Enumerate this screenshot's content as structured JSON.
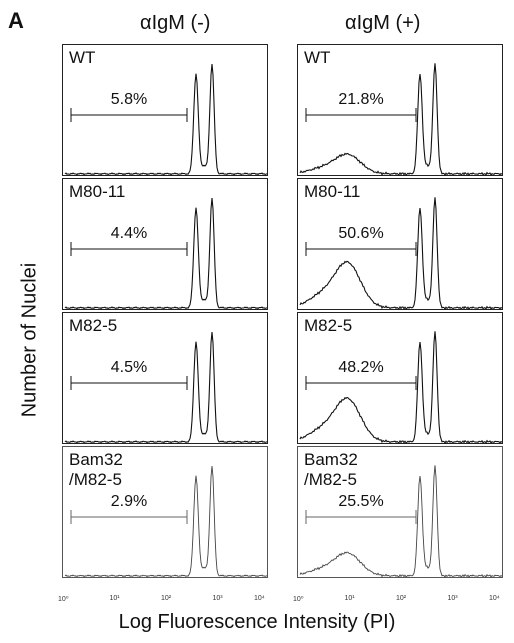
{
  "figure": {
    "panel_letter": "A",
    "col_titles": [
      "αIgM (-)",
      "αIgM (+)"
    ],
    "ylabel": "Number of Nuclei",
    "xlabel": "Log Fluorescence Intensity (PI)",
    "x_ticks": [
      "10⁰",
      "10¹",
      "10²",
      "10³",
      "10⁴"
    ]
  },
  "colors": {
    "ink": "#111111",
    "faint": "#777777"
  },
  "chart_data": [
    {
      "type": "histogram",
      "sample": "WT",
      "condition": "αIgM (-)",
      "gate_percent": "5.8%",
      "subG1_fraction": 5.8,
      "xscale": "log",
      "xlim": [
        1,
        10000
      ]
    },
    {
      "type": "histogram",
      "sample": "WT",
      "condition": "αIgM (+)",
      "gate_percent": "21.8%",
      "subG1_fraction": 21.8,
      "xscale": "log",
      "xlim": [
        1,
        10000
      ]
    },
    {
      "type": "histogram",
      "sample": "M80-11",
      "condition": "αIgM (-)",
      "gate_percent": "4.4%",
      "subG1_fraction": 4.4,
      "xscale": "log",
      "xlim": [
        1,
        10000
      ]
    },
    {
      "type": "histogram",
      "sample": "M80-11",
      "condition": "αIgM (+)",
      "gate_percent": "50.6%",
      "subG1_fraction": 50.6,
      "xscale": "log",
      "xlim": [
        1,
        10000
      ]
    },
    {
      "type": "histogram",
      "sample": "M82-5",
      "condition": "αIgM (-)",
      "gate_percent": "4.5%",
      "subG1_fraction": 4.5,
      "xscale": "log",
      "xlim": [
        1,
        10000
      ]
    },
    {
      "type": "histogram",
      "sample": "M82-5",
      "condition": "αIgM (+)",
      "gate_percent": "48.2%",
      "subG1_fraction": 48.2,
      "xscale": "log",
      "xlim": [
        1,
        10000
      ]
    },
    {
      "type": "histogram",
      "sample": "Bam32\n/M82-5",
      "condition": "αIgM (-)",
      "gate_percent": "2.9%",
      "subG1_fraction": 2.9,
      "xscale": "log",
      "xlim": [
        1,
        10000
      ]
    },
    {
      "type": "histogram",
      "sample": "Bam32\n/M82-5",
      "condition": "αIgM (+)",
      "gate_percent": "25.5%",
      "subG1_fraction": 25.5,
      "xscale": "log",
      "xlim": [
        1,
        10000
      ]
    }
  ]
}
